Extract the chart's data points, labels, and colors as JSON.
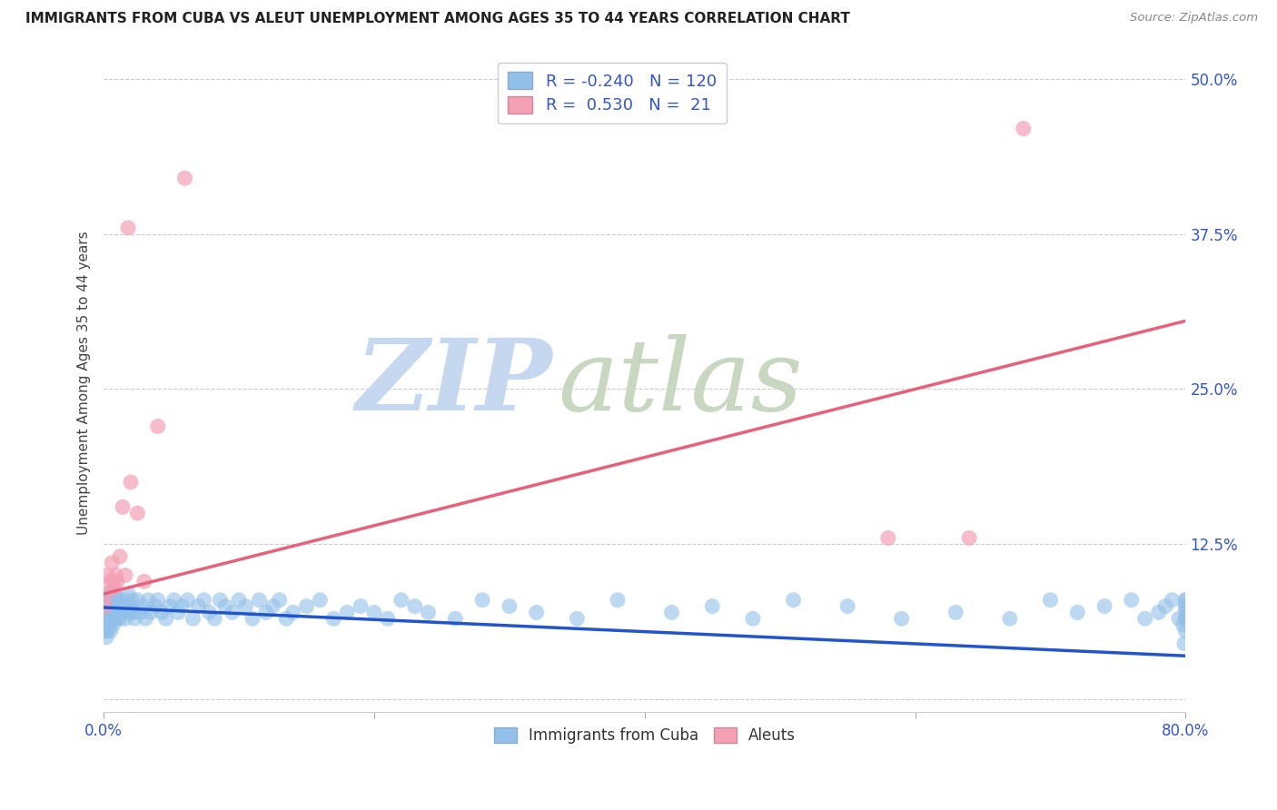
{
  "title": "IMMIGRANTS FROM CUBA VS ALEUT UNEMPLOYMENT AMONG AGES 35 TO 44 YEARS CORRELATION CHART",
  "source": "Source: ZipAtlas.com",
  "ylabel": "Unemployment Among Ages 35 to 44 years",
  "xlim": [
    0.0,
    0.8
  ],
  "ylim": [
    -0.01,
    0.52
  ],
  "blue_R": -0.24,
  "blue_N": 120,
  "pink_R": 0.53,
  "pink_N": 21,
  "blue_color": "#92c0e8",
  "pink_color": "#f4a0b5",
  "blue_line_color": "#2255cc",
  "pink_line_color": "#e8607a",
  "watermark_zip": "ZIP",
  "watermark_atlas": "atlas",
  "watermark_color_zip": "#c8d8ee",
  "watermark_color_atlas": "#c8d8c8",
  "legend_label_blue": "Immigrants from Cuba",
  "legend_label_pink": "Aleuts",
  "blue_x": [
    0.001,
    0.001,
    0.001,
    0.002,
    0.002,
    0.002,
    0.002,
    0.003,
    0.003,
    0.003,
    0.003,
    0.004,
    0.004,
    0.004,
    0.005,
    0.005,
    0.005,
    0.006,
    0.006,
    0.006,
    0.007,
    0.007,
    0.007,
    0.008,
    0.008,
    0.008,
    0.009,
    0.009,
    0.01,
    0.01,
    0.011,
    0.011,
    0.012,
    0.013,
    0.014,
    0.015,
    0.016,
    0.017,
    0.018,
    0.019,
    0.02,
    0.021,
    0.022,
    0.023,
    0.025,
    0.027,
    0.029,
    0.031,
    0.033,
    0.035,
    0.038,
    0.04,
    0.043,
    0.046,
    0.049,
    0.052,
    0.055,
    0.058,
    0.062,
    0.066,
    0.07,
    0.074,
    0.078,
    0.082,
    0.086,
    0.09,
    0.095,
    0.1,
    0.105,
    0.11,
    0.115,
    0.12,
    0.125,
    0.13,
    0.135,
    0.14,
    0.15,
    0.16,
    0.17,
    0.18,
    0.19,
    0.2,
    0.21,
    0.22,
    0.23,
    0.24,
    0.26,
    0.28,
    0.3,
    0.32,
    0.35,
    0.38,
    0.42,
    0.45,
    0.48,
    0.51,
    0.55,
    0.59,
    0.63,
    0.67,
    0.7,
    0.72,
    0.74,
    0.76,
    0.77,
    0.78,
    0.785,
    0.79,
    0.795,
    0.798,
    0.799,
    0.8,
    0.8,
    0.8,
    0.8,
    0.8,
    0.8,
    0.8,
    0.8,
    0.8
  ],
  "blue_y": [
    0.055,
    0.065,
    0.075,
    0.06,
    0.07,
    0.08,
    0.05,
    0.065,
    0.075,
    0.085,
    0.055,
    0.07,
    0.08,
    0.06,
    0.07,
    0.08,
    0.055,
    0.065,
    0.075,
    0.085,
    0.06,
    0.07,
    0.085,
    0.065,
    0.075,
    0.085,
    0.07,
    0.08,
    0.065,
    0.075,
    0.07,
    0.08,
    0.065,
    0.075,
    0.07,
    0.08,
    0.065,
    0.075,
    0.085,
    0.07,
    0.075,
    0.08,
    0.07,
    0.065,
    0.08,
    0.07,
    0.075,
    0.065,
    0.08,
    0.07,
    0.075,
    0.08,
    0.07,
    0.065,
    0.075,
    0.08,
    0.07,
    0.075,
    0.08,
    0.065,
    0.075,
    0.08,
    0.07,
    0.065,
    0.08,
    0.075,
    0.07,
    0.08,
    0.075,
    0.065,
    0.08,
    0.07,
    0.075,
    0.08,
    0.065,
    0.07,
    0.075,
    0.08,
    0.065,
    0.07,
    0.075,
    0.07,
    0.065,
    0.08,
    0.075,
    0.07,
    0.065,
    0.08,
    0.075,
    0.07,
    0.065,
    0.08,
    0.07,
    0.075,
    0.065,
    0.08,
    0.075,
    0.065,
    0.07,
    0.065,
    0.08,
    0.07,
    0.075,
    0.08,
    0.065,
    0.07,
    0.075,
    0.08,
    0.065,
    0.06,
    0.045,
    0.065,
    0.075,
    0.08,
    0.055,
    0.07,
    0.065,
    0.08,
    0.075,
    0.065
  ],
  "pink_x": [
    0.001,
    0.002,
    0.003,
    0.005,
    0.006,
    0.007,
    0.008,
    0.009,
    0.01,
    0.012,
    0.014,
    0.016,
    0.018,
    0.02,
    0.025,
    0.03,
    0.04,
    0.06,
    0.58,
    0.64,
    0.68
  ],
  "pink_y": [
    0.075,
    0.085,
    0.1,
    0.095,
    0.11,
    0.095,
    0.09,
    0.1,
    0.095,
    0.115,
    0.155,
    0.1,
    0.38,
    0.175,
    0.15,
    0.095,
    0.22,
    0.42,
    0.13,
    0.13,
    0.46
  ],
  "blue_line_x0": 0.0,
  "blue_line_x1": 0.8,
  "blue_line_y0": 0.074,
  "blue_line_y1": 0.035,
  "pink_line_x0": 0.0,
  "pink_line_x1": 0.8,
  "pink_line_y0": 0.085,
  "pink_line_y1": 0.305
}
